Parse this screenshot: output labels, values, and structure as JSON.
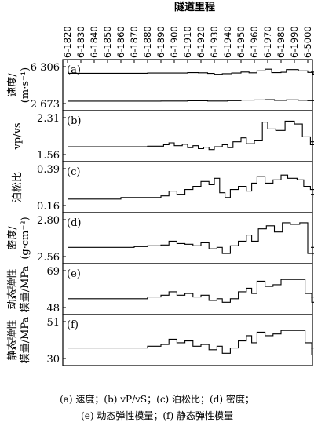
{
  "chart_data": {
    "type": "line",
    "title": "隧道里程",
    "x_ticks": [
      "6-1820",
      "6-1830",
      "6-1840",
      "6-1850",
      "6-1860",
      "6-1870",
      "6-1880",
      "6-1890",
      "6-1900",
      "6-1910",
      "6-1920",
      "6-1930",
      "6-1940",
      "6-1950",
      "6-1960",
      "6-1970",
      "6-1980",
      "6-1990",
      "6-5000"
    ],
    "panels": [
      {
        "letter": "(a)",
        "ylabel": "速度/\n(m·s⁻¹)",
        "y_ticks": [
          "6 306",
          "2 673"
        ],
        "ylim": [
          2673,
          6306
        ],
        "series": [
          {
            "name": "",
            "points": [
              [
                0,
                5660
              ],
              [
                6,
                5680
              ],
              [
                9,
                5720
              ],
              [
                9.8,
                5700
              ],
              [
                10.5,
                5640
              ],
              [
                11,
                5560
              ],
              [
                11.6,
                5620
              ],
              [
                12.3,
                5680
              ],
              [
                13,
                5780
              ],
              [
                13.6,
                5700
              ],
              [
                14.2,
                5900
              ],
              [
                14.8,
                6060
              ],
              [
                15.3,
                5720
              ],
              [
                16,
                5760
              ],
              [
                16.4,
                6020
              ],
              [
                17.3,
                5900
              ],
              [
                18,
                5740
              ],
              [
                18.4,
                5580
              ],
              [
                18.8,
                5780
              ]
            ]
          },
          {
            "name": "",
            "points": [
              [
                0,
                2910
              ],
              [
                7,
                2920
              ],
              [
                9,
                2950
              ],
              [
                10.5,
                2920
              ],
              [
                12,
                2960
              ],
              [
                13,
                3010
              ],
              [
                14,
                3030
              ],
              [
                14.8,
                3060
              ],
              [
                15.5,
                2990
              ],
              [
                16.4,
                3040
              ],
              [
                17.3,
                3000
              ],
              [
                18,
                2960
              ],
              [
                18.8,
                3000
              ]
            ]
          }
        ]
      },
      {
        "letter": "(b)",
        "ylabel": "vp/vs",
        "y_ticks": [
          "2.31",
          "1.56"
        ],
        "ylim": [
          1.56,
          2.31
        ],
        "series": [
          {
            "name": "",
            "points": [
              [
                0,
                1.72
              ],
              [
                6,
                1.73
              ],
              [
                7.2,
                1.76
              ],
              [
                7.6,
                1.8
              ],
              [
                8.0,
                1.74
              ],
              [
                8.6,
                1.77
              ],
              [
                9.0,
                1.7
              ],
              [
                9.4,
                1.74
              ],
              [
                9.8,
                1.68
              ],
              [
                10.2,
                1.71
              ],
              [
                10.6,
                1.66
              ],
              [
                11.0,
                1.72
              ],
              [
                11.6,
                1.76
              ],
              [
                12.0,
                1.7
              ],
              [
                12.4,
                1.82
              ],
              [
                13.0,
                1.9
              ],
              [
                13.4,
                1.78
              ],
              [
                14.0,
                1.84
              ],
              [
                14.6,
                2.22
              ],
              [
                15.0,
                2.08
              ],
              [
                15.6,
                2.05
              ],
              [
                16.3,
                2.24
              ],
              [
                17.0,
                2.18
              ],
              [
                17.6,
                1.92
              ],
              [
                18.2,
                1.76
              ],
              [
                18.6,
                1.72
              ],
              [
                18.8,
                1.82
              ]
            ]
          }
        ]
      },
      {
        "letter": "(c)",
        "ylabel": "泊松比",
        "y_ticks": [
          "0.39",
          "0.16"
        ],
        "ylim": [
          0.16,
          0.39
        ],
        "series": [
          {
            "name": "",
            "points": [
              [
                0,
                0.2
              ],
              [
                3,
                0.2
              ],
              [
                4,
                0.21
              ],
              [
                6,
                0.21
              ],
              [
                7,
                0.22
              ],
              [
                7.6,
                0.25
              ],
              [
                8.2,
                0.23
              ],
              [
                8.8,
                0.26
              ],
              [
                9.4,
                0.28
              ],
              [
                10,
                0.31
              ],
              [
                10.6,
                0.29
              ],
              [
                11.0,
                0.33
              ],
              [
                11.4,
                0.24
              ],
              [
                11.8,
                0.21
              ],
              [
                12.2,
                0.26
              ],
              [
                12.8,
                0.28
              ],
              [
                13.4,
                0.25
              ],
              [
                13.8,
                0.3
              ],
              [
                14.2,
                0.34
              ],
              [
                14.8,
                0.3
              ],
              [
                15.4,
                0.32
              ],
              [
                16.0,
                0.35
              ],
              [
                16.5,
                0.33
              ],
              [
                17.2,
                0.32
              ],
              [
                17.7,
                0.28
              ],
              [
                18.2,
                0.26
              ],
              [
                18.5,
                0.21
              ],
              [
                18.8,
                0.23
              ]
            ]
          }
        ]
      },
      {
        "letter": "(d)",
        "ylabel": "密度/\n(g·cm⁻³)",
        "y_ticks": [
          "2.80",
          "2.56"
        ],
        "ylim": [
          2.56,
          2.8
        ],
        "series": [
          {
            "name": "",
            "points": [
              [
                0,
                2.62
              ],
              [
                3,
                2.62
              ],
              [
                5,
                2.625
              ],
              [
                6,
                2.63
              ],
              [
                7,
                2.635
              ],
              [
                7.6,
                2.66
              ],
              [
                8.2,
                2.645
              ],
              [
                8.8,
                2.64
              ],
              [
                9.4,
                2.63
              ],
              [
                10.0,
                2.65
              ],
              [
                10.6,
                2.61
              ],
              [
                11.2,
                2.62
              ],
              [
                11.6,
                2.58
              ],
              [
                12.2,
                2.63
              ],
              [
                12.8,
                2.66
              ],
              [
                13.4,
                2.7
              ],
              [
                13.8,
                2.66
              ],
              [
                14.3,
                2.74
              ],
              [
                14.9,
                2.76
              ],
              [
                15.5,
                2.72
              ],
              [
                16.1,
                2.78
              ],
              [
                16.7,
                2.77
              ],
              [
                17.4,
                2.78
              ],
              [
                18.0,
                2.58
              ],
              [
                18.5,
                2.57
              ],
              [
                18.8,
                2.62
              ]
            ]
          }
        ]
      },
      {
        "letter": "(e)",
        "ylabel": "动态弹性\n模量/MPa",
        "y_ticks": [
          "69",
          "48"
        ],
        "ylim": [
          48,
          69
        ],
        "series": [
          {
            "name": "",
            "points": [
              [
                0,
                53
              ],
              [
                4,
                53
              ],
              [
                6,
                54
              ],
              [
                7,
                55
              ],
              [
                7.6,
                57
              ],
              [
                8.2,
                55
              ],
              [
                8.8,
                56
              ],
              [
                9.4,
                54
              ],
              [
                10.0,
                55
              ],
              [
                10.6,
                52
              ],
              [
                11.2,
                53
              ],
              [
                11.6,
                51
              ],
              [
                12.2,
                53
              ],
              [
                12.8,
                57
              ],
              [
                13.4,
                59
              ],
              [
                13.8,
                56
              ],
              [
                14.2,
                63
              ],
              [
                14.8,
                60
              ],
              [
                15.4,
                61
              ],
              [
                16.0,
                64
              ],
              [
                16.6,
                64
              ],
              [
                17.3,
                64
              ],
              [
                17.8,
                56
              ],
              [
                18.3,
                51
              ],
              [
                18.8,
                54
              ]
            ]
          }
        ]
      },
      {
        "letter": "(f)",
        "ylabel": "静态弹性\n模量/MPa",
        "y_ticks": [
          "51",
          "30"
        ],
        "ylim": [
          30,
          51
        ],
        "series": [
          {
            "name": "",
            "points": [
              [
                0,
                36
              ],
              [
                4,
                36
              ],
              [
                6,
                37
              ],
              [
                7,
                38
              ],
              [
                7.6,
                41
              ],
              [
                8.2,
                39
              ],
              [
                8.8,
                40
              ],
              [
                9.4,
                37
              ],
              [
                10.0,
                38
              ],
              [
                10.6,
                35
              ],
              [
                11.2,
                37
              ],
              [
                11.6,
                33
              ],
              [
                12.2,
                36
              ],
              [
                12.8,
                40
              ],
              [
                13.4,
                43
              ],
              [
                13.8,
                39
              ],
              [
                14.2,
                45
              ],
              [
                14.8,
                43
              ],
              [
                15.4,
                44
              ],
              [
                16.0,
                46
              ],
              [
                16.6,
                46
              ],
              [
                17.3,
                46
              ],
              [
                17.8,
                39
              ],
              [
                18.3,
                32
              ],
              [
                18.8,
                36
              ]
            ]
          }
        ]
      }
    ]
  },
  "caption": {
    "line1": "(a) 速度；(b) vP/vS；(c) 泊松比；(d) 密度；",
    "line2": "(e) 动态弹性模量；(f) 静态弹性模量"
  }
}
